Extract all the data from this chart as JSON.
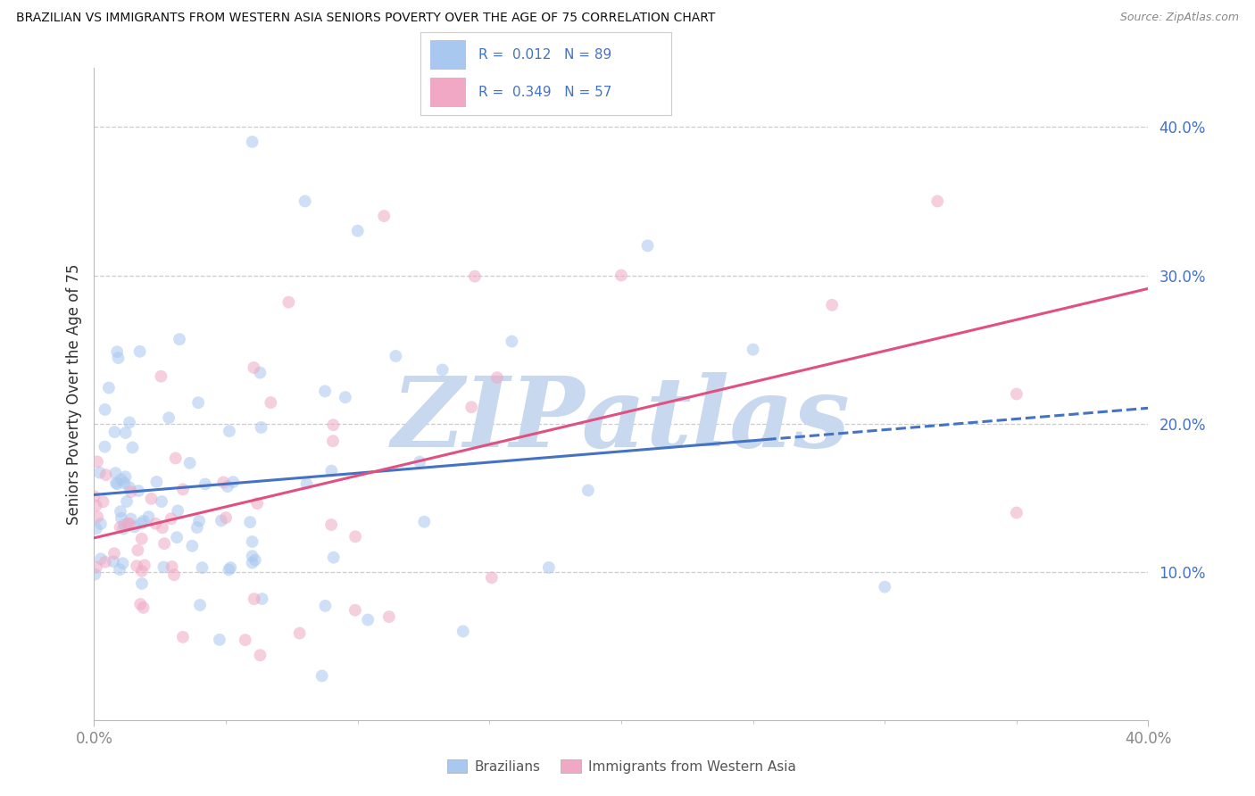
{
  "title": "BRAZILIAN VS IMMIGRANTS FROM WESTERN ASIA SENIORS POVERTY OVER THE AGE OF 75 CORRELATION CHART",
  "source": "Source: ZipAtlas.com",
  "ylabel": "Seniors Poverty Over the Age of 75",
  "xlim": [
    0.0,
    0.4
  ],
  "ylim": [
    0.0,
    0.44
  ],
  "ytick_vals": [
    0.1,
    0.2,
    0.3,
    0.4
  ],
  "ytick_labels": [
    "10.0%",
    "20.0%",
    "30.0%",
    "40.0%"
  ],
  "xtick_vals": [
    0.0,
    0.4
  ],
  "xtick_labels": [
    "0.0%",
    "40.0%"
  ],
  "r_brazilian": 0.012,
  "n_brazilian": 89,
  "r_western_asia": 0.349,
  "n_western_asia": 57,
  "color_brazilian": "#A8C8F0",
  "color_western_asia": "#F0A8C4",
  "color_line_brazilian": "#4472C4",
  "color_line_western_asia": "#E05080",
  "color_accent": "#4472C4",
  "color_gridline": "#CCCCCC",
  "watermark_color": "#C8D8EE",
  "background_color": "#FFFFFF",
  "scatter_alpha": 0.55,
  "scatter_size": 100,
  "legend_box_color": "#EEEEEE",
  "legend_border_color": "#CCCCCC",
  "bottom_legend_labels": [
    "Brazilians",
    "Immigrants from Western Asia"
  ]
}
